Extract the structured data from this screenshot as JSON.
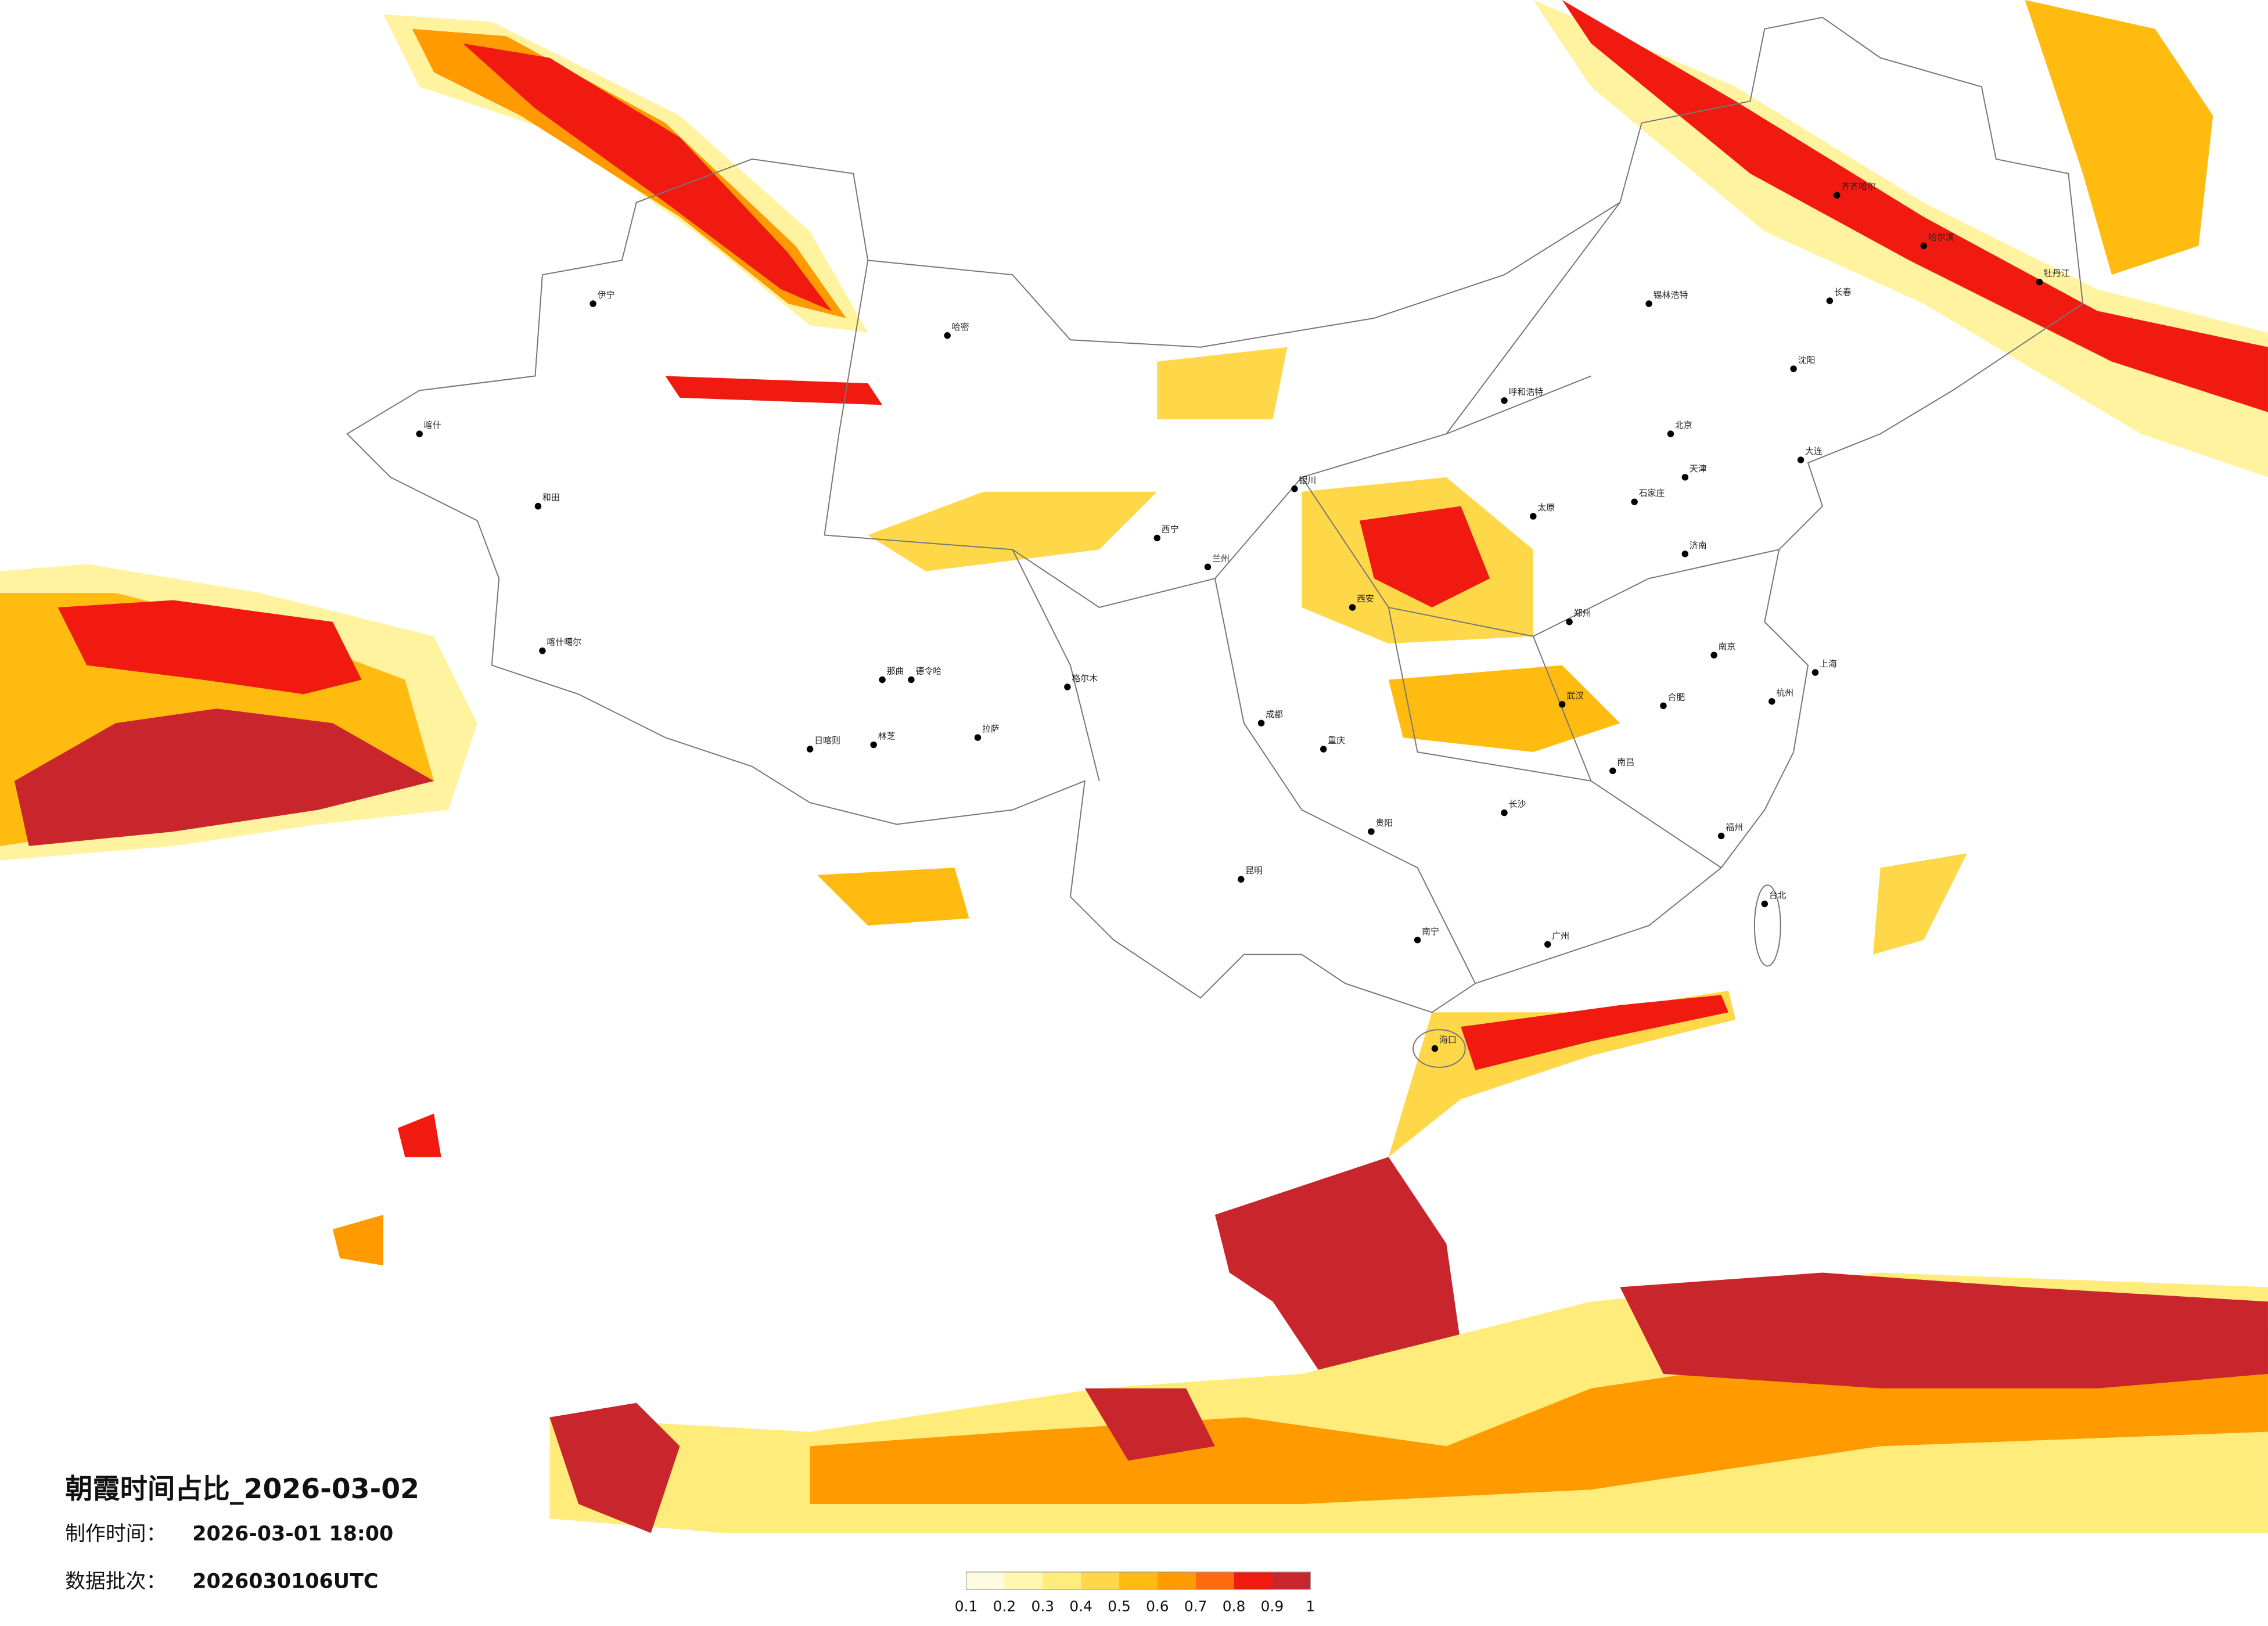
{
  "header": {
    "title": "朝霞时间占比_2026-03-02",
    "made_label": "制作时间：",
    "made_time": "2026-03-01 18:00",
    "batch_label": "数据批次：",
    "batch": "2026030106UTC"
  },
  "legend": {
    "colors": [
      "#fffbe0",
      "#fff6b0",
      "#ffec7a",
      "#ffd84a",
      "#ffbb10",
      "#ff9a00",
      "#ff6a10",
      "#f01a10",
      "#c8252c"
    ],
    "ticks": [
      0.1,
      0.2,
      0.3,
      0.4,
      0.5,
      0.6,
      0.7,
      0.8,
      0.9,
      1
    ]
  },
  "cities": [
    "伊宁",
    "和田",
    "喀什",
    "哈密",
    "喀什噶尔",
    "格尔木",
    "拉萨",
    "日喀则",
    "林芝",
    "那曲",
    "西宁",
    "兰州",
    "银川",
    "呼和浩特",
    "北京",
    "天津",
    "石家庄",
    "太原",
    "郑州",
    "西安",
    "成都",
    "重庆",
    "贵阳",
    "昆明",
    "南宁",
    "广州",
    "长沙",
    "武汉",
    "南昌",
    "福州",
    "杭州",
    "上海",
    "南京",
    "合肥",
    "济南",
    "沈阳",
    "长春",
    "哈尔滨",
    "锡林浩特",
    "齐齐哈尔",
    "牡丹江",
    "海口",
    "台北",
    "大连",
    "德令哈"
  ]
}
